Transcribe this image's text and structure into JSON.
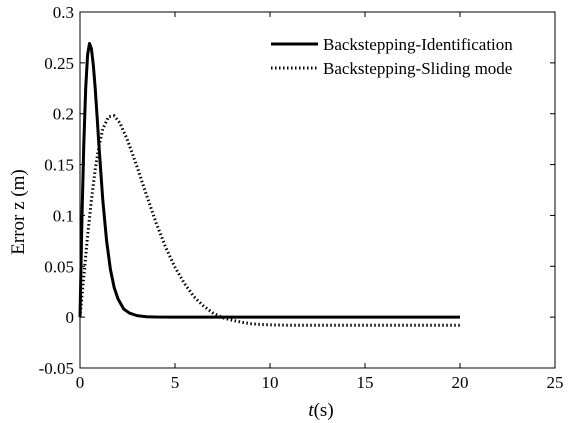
{
  "chart_data": {
    "type": "line",
    "title": "",
    "xlabel_italic": "t",
    "xlabel_rest": "(s)",
    "ylabel": "Error z (m)",
    "xlim": [
      0,
      25
    ],
    "ylim": [
      -0.05,
      0.3
    ],
    "xticks": [
      0,
      5,
      10,
      15,
      20,
      25
    ],
    "yticks": [
      -0.05,
      0,
      0.05,
      0.1,
      0.15,
      0.2,
      0.25,
      0.3
    ],
    "xtick_labels": [
      "0",
      "5",
      "10",
      "15",
      "20",
      "25"
    ],
    "ytick_labels": [
      "-0.05",
      "0",
      "0.05",
      "0.1",
      "0.15",
      "0.2",
      "0.25",
      "0.3"
    ],
    "grid": false,
    "legend_position": "top-right",
    "series": [
      {
        "name": "Backstepping-Identification",
        "style": "solid",
        "color": "#000000",
        "x": [
          0,
          0.1,
          0.2,
          0.3,
          0.4,
          0.5,
          0.6,
          0.7,
          0.8,
          0.9,
          1.0,
          1.2,
          1.4,
          1.6,
          1.8,
          2.0,
          2.3,
          2.6,
          3.0,
          3.5,
          4.0,
          5.0,
          7.0,
          10.0,
          15.0,
          20.0
        ],
        "y": [
          0,
          0.095,
          0.17,
          0.225,
          0.258,
          0.269,
          0.264,
          0.248,
          0.225,
          0.197,
          0.168,
          0.115,
          0.075,
          0.047,
          0.029,
          0.018,
          0.008,
          0.004,
          0.0015,
          0.0004,
          0.0001,
          0,
          0,
          0,
          0,
          0
        ]
      },
      {
        "name": "Backstepping-Sliding mode",
        "style": "dotted",
        "color": "#000000",
        "x": [
          0,
          0.2,
          0.4,
          0.6,
          0.8,
          1.0,
          1.2,
          1.5,
          1.8,
          2.1,
          2.5,
          3.0,
          3.5,
          4.0,
          4.5,
          5.0,
          5.5,
          6.0,
          6.5,
          7.0,
          7.5,
          8.0,
          8.5,
          9.0,
          9.5,
          10.0,
          11.0,
          12.0,
          14.0,
          16.0,
          18.0,
          20.0
        ],
        "y": [
          0,
          0.04,
          0.08,
          0.115,
          0.145,
          0.168,
          0.185,
          0.197,
          0.198,
          0.191,
          0.174,
          0.148,
          0.12,
          0.093,
          0.069,
          0.049,
          0.033,
          0.02,
          0.011,
          0.004,
          -0.0005,
          -0.003,
          -0.005,
          -0.0065,
          -0.0072,
          -0.0076,
          -0.008,
          -0.008,
          -0.008,
          -0.008,
          -0.008,
          -0.008
        ]
      }
    ]
  }
}
